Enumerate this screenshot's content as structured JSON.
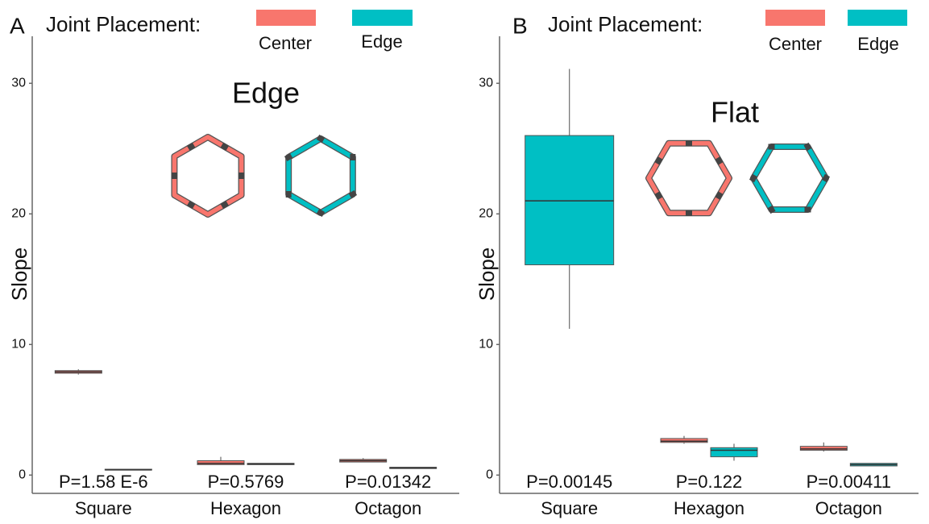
{
  "chart_data": [
    {
      "type": "box",
      "panel_label": "A",
      "legend_title": "Joint Placement:",
      "subtitle": "Edge",
      "ylabel": "Slope",
      "categories": [
        "Square",
        "Hexagon",
        "Octagon"
      ],
      "annotations": [
        "P=1.58 E-6",
        "P=0.5769",
        "P=0.01342"
      ],
      "ylim": [
        -1.4,
        33.6
      ],
      "yticks": [
        0,
        10,
        20,
        30
      ],
      "series": [
        {
          "name": "Center",
          "color": "#F8766D",
          "values": [
            {
              "min": 7.7,
              "q1": 7.8,
              "median": 7.9,
              "q3": 8.0,
              "max": 8.1
            },
            {
              "min": 0.8,
              "q1": 0.8,
              "median": 0.9,
              "q3": 1.1,
              "max": 1.4
            },
            {
              "min": 1.0,
              "q1": 1.0,
              "median": 1.1,
              "q3": 1.2,
              "max": 1.3
            }
          ]
        },
        {
          "name": "Edge",
          "color": "#00BFC4",
          "values": [
            {
              "min": 0.4,
              "q1": 0.4,
              "median": 0.4,
              "q3": 0.45,
              "max": 0.45
            },
            {
              "min": 0.8,
              "q1": 0.8,
              "median": 0.85,
              "q3": 0.9,
              "max": 0.9
            },
            {
              "min": 0.5,
              "q1": 0.5,
              "median": 0.55,
              "q3": 0.6,
              "max": 0.6
            }
          ]
        }
      ]
    },
    {
      "type": "box",
      "panel_label": "B",
      "legend_title": "Joint Placement:",
      "subtitle": "Flat",
      "ylabel": "Slope",
      "categories": [
        "Square",
        "Hexagon",
        "Octagon"
      ],
      "annotations": [
        "P=0.00145",
        "P=0.122",
        "P=0.00411"
      ],
      "ylim": [
        -1.4,
        33.6
      ],
      "yticks": [
        0,
        10,
        20,
        30
      ],
      "series": [
        {
          "name": "Center",
          "color": "#F8766D",
          "values": [
            null,
            {
              "min": 2.4,
              "q1": 2.5,
              "median": 2.6,
              "q3": 2.8,
              "max": 3.0
            },
            {
              "min": 1.8,
              "q1": 1.9,
              "median": 2.0,
              "q3": 2.2,
              "max": 2.5
            }
          ]
        },
        {
          "name": "Edge",
          "color": "#00BFC4",
          "values": [
            {
              "min": 11.2,
              "q1": 16.1,
              "median": 21.0,
              "q3": 26.0,
              "max": 31.1
            },
            {
              "min": 1.1,
              "q1": 1.4,
              "median": 1.9,
              "q3": 2.1,
              "max": 2.4
            },
            {
              "min": 0.7,
              "q1": 0.7,
              "median": 0.8,
              "q3": 0.9,
              "max": 0.9
            }
          ]
        }
      ]
    }
  ]
}
